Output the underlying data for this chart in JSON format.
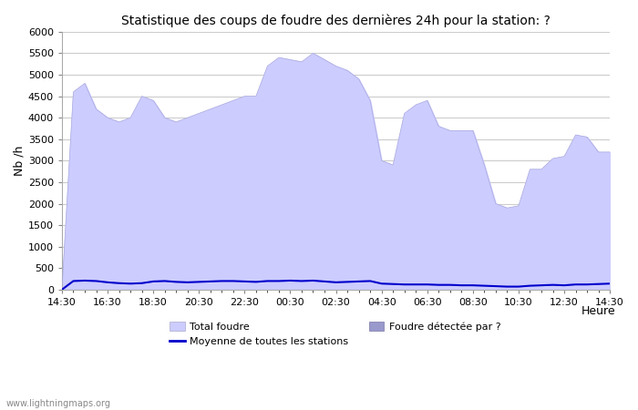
{
  "title": "Statistique des coups de foudre des dernières 24h pour la station: ?",
  "ylabel": "Nb /h",
  "xlabel": "Heure",
  "watermark": "www.lightningmaps.org",
  "ylim": [
    0,
    6000
  ],
  "yticks": [
    0,
    500,
    1000,
    1500,
    2000,
    2500,
    3000,
    3500,
    4000,
    4500,
    5000,
    5500,
    6000
  ],
  "xtick_labels": [
    "14:30",
    "16:30",
    "18:30",
    "20:30",
    "22:30",
    "00:30",
    "02:30",
    "04:30",
    "06:30",
    "08:30",
    "10:30",
    "12:30",
    "14:30"
  ],
  "legend_total_foudre_color": "#ccccff",
  "legend_foudre_detectee_color": "#9999cc",
  "legend_moyenne_color": "#0000cc",
  "total_foudre_fill_color": "#ccccff",
  "total_foudre_edge_color": "#aaaadd",
  "moyenne_line_color": "#0000cc",
  "background_color": "#ffffff",
  "grid_color": "#cccccc",
  "x_values": [
    0,
    1,
    2,
    3,
    4,
    5,
    6,
    7,
    8,
    9,
    10,
    11,
    12,
    13,
    14,
    15,
    16,
    17,
    18,
    19,
    20,
    21,
    22,
    23,
    24,
    25,
    26,
    27,
    28,
    29,
    30,
    31,
    32,
    33,
    34,
    35,
    36,
    37,
    38,
    39,
    40,
    41,
    42,
    43,
    44,
    45,
    46,
    47,
    48
  ],
  "total_foudre": [
    0,
    4600,
    4800,
    4200,
    4000,
    3900,
    4000,
    4500,
    4400,
    4000,
    3900,
    4000,
    4100,
    4200,
    4300,
    4400,
    4500,
    4500,
    5200,
    5400,
    5350,
    5300,
    5500,
    5350,
    5200,
    5100,
    4900,
    4400,
    3000,
    2900,
    4100,
    4300,
    4400,
    3800,
    3700,
    3700,
    3700,
    2900,
    2000,
    1900,
    1950,
    2800,
    2800,
    3050,
    3100,
    3600,
    3550,
    3200,
    3200
  ],
  "moyenne_line": [
    0,
    200,
    210,
    200,
    170,
    150,
    140,
    150,
    190,
    200,
    180,
    170,
    180,
    190,
    200,
    200,
    190,
    180,
    200,
    200,
    210,
    200,
    210,
    190,
    170,
    180,
    190,
    200,
    140,
    130,
    120,
    120,
    120,
    110,
    110,
    100,
    100,
    90,
    80,
    70,
    70,
    90,
    100,
    110,
    100,
    120,
    120,
    130,
    140
  ]
}
